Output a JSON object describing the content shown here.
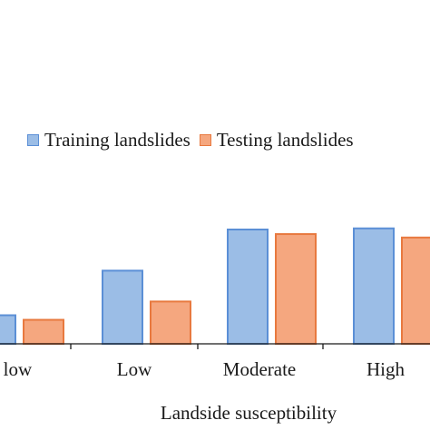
{
  "chart_data": {
    "type": "bar",
    "categories": [
      "Very low",
      "Low",
      "Moderate",
      "High"
    ],
    "visible_category_text": [
      "ry low",
      "Low",
      "Moderate",
      "High"
    ],
    "series": [
      {
        "name": "Training landslides",
        "values": [
          2.5,
          6.4,
          10.0,
          10.1
        ],
        "color": "#9bbde6",
        "stroke": "#5b8fd6"
      },
      {
        "name": "Testing landslides",
        "values": [
          2.1,
          3.7,
          9.6,
          9.3
        ],
        "color": "#f5a77f",
        "stroke": "#e8793f"
      }
    ],
    "xlabel": "Landside susceptibility",
    "ylabel": "",
    "ylim": [
      0,
      20
    ],
    "legend_position": "top-center",
    "grid": false
  }
}
